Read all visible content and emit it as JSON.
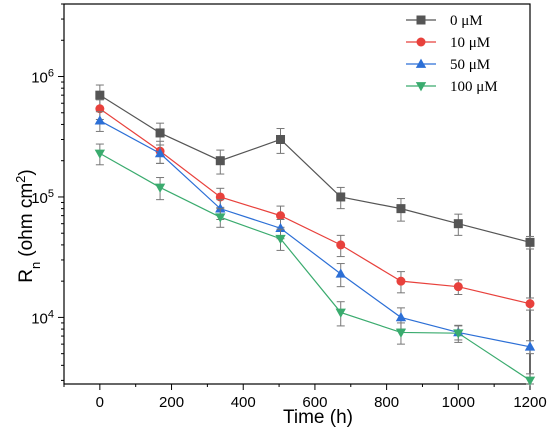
{
  "chart_data": {
    "type": "line",
    "xlabel": "Time (h)",
    "ylabel_main": "R",
    "ylabel_sub": "n",
    "ylabel_units": "(ohm cm",
    "ylabel_sup": "2",
    "ylabel_close": ")",
    "x_ticks": [
      "0",
      "200",
      "400",
      "600",
      "800",
      "1000",
      "1200"
    ],
    "x_tick_values": [
      0,
      200,
      400,
      600,
      800,
      1000,
      1200
    ],
    "y_scale": "log",
    "y_ticks": [
      {
        "base": "10",
        "exp": "4",
        "value": 10000
      },
      {
        "base": "10",
        "exp": "5",
        "value": 100000
      },
      {
        "base": "10",
        "exp": "6",
        "value": 1000000
      }
    ],
    "xlim": [
      -100,
      1200
    ],
    "ylim": [
      2800,
      4000000
    ],
    "grid": false,
    "legend_position": "top-right",
    "x": [
      0,
      168,
      336,
      504,
      672,
      840,
      1000,
      1200
    ],
    "series": [
      {
        "name": "0 μM",
        "color": "#555555",
        "marker": "square",
        "values": [
          700000,
          340000,
          200000,
          300000,
          100000,
          80000,
          60000,
          42000
        ],
        "errors": [
          150000,
          70000,
          45000,
          70000,
          20000,
          17000,
          12000,
          5000
        ]
      },
      {
        "name": "10 μM",
        "color": "#e8413c",
        "marker": "circle",
        "values": [
          540000,
          240000,
          100000,
          70000,
          40000,
          20000,
          18000,
          13000
        ],
        "errors": [
          100000,
          50000,
          18000,
          14000,
          8000,
          4000,
          2500,
          1500
        ]
      },
      {
        "name": "50 μM",
        "color": "#2c6fd6",
        "marker": "triangle-up",
        "values": [
          430000,
          230000,
          80000,
          55000,
          23000,
          10000,
          7500,
          5700
        ],
        "errors": [
          80000,
          40000,
          15000,
          10000,
          5000,
          2000,
          1000,
          700
        ]
      },
      {
        "name": "100 μM",
        "color": "#3aab6e",
        "marker": "triangle-down",
        "values": [
          230000,
          120000,
          68000,
          45000,
          11000,
          7500,
          7400,
          3000
        ],
        "errors": [
          45000,
          25000,
          12000,
          9000,
          2500,
          1500,
          1200,
          400
        ]
      }
    ]
  }
}
